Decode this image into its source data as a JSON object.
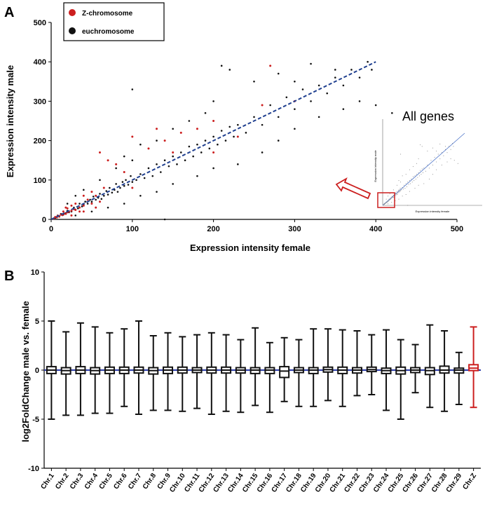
{
  "panels": {
    "a_label": "A",
    "b_label": "B"
  },
  "chart_data": [
    {
      "type": "scatter",
      "xlabel": "Expression intensity female",
      "ylabel": "Expression intensity male",
      "xlim": [
        0,
        500
      ],
      "ylim": [
        0,
        500
      ],
      "xticks": [
        "0",
        "100",
        "200",
        "300",
        "400",
        "500"
      ],
      "yticks": [
        "0",
        "100",
        "200",
        "300",
        "400",
        "500"
      ],
      "legend": [
        {
          "label": "Z-chromosome",
          "color": "#cc1f1f"
        },
        {
          "label": "euchromosome",
          "color": "#111111"
        }
      ],
      "legend_position": "top-left",
      "trendline": {
        "x": [
          0,
          400
        ],
        "y": [
          0,
          400
        ],
        "style": "dashed",
        "color": "#1f3f8f"
      },
      "inset": {
        "title": "All genes",
        "xlabel": "Expression intensity female",
        "ylabel": "Expression intensity male",
        "highlight_color": "#cc1f1f"
      },
      "points_note": "dense cloud along y = x from 0 to ~400, red Z-chromosome points concentrated below 100",
      "points_euchromosome": [
        [
          5,
          4
        ],
        [
          8,
          10
        ],
        [
          10,
          7
        ],
        [
          12,
          14
        ],
        [
          15,
          12
        ],
        [
          18,
          16
        ],
        [
          20,
          22
        ],
        [
          22,
          18
        ],
        [
          25,
          20
        ],
        [
          28,
          30
        ],
        [
          30,
          25
        ],
        [
          33,
          28
        ],
        [
          35,
          40
        ],
        [
          38,
          33
        ],
        [
          40,
          38
        ],
        [
          42,
          45
        ],
        [
          45,
          40
        ],
        [
          48,
          50
        ],
        [
          50,
          45
        ],
        [
          52,
          58
        ],
        [
          55,
          50
        ],
        [
          58,
          55
        ],
        [
          60,
          65
        ],
        [
          62,
          52
        ],
        [
          65,
          60
        ],
        [
          68,
          72
        ],
        [
          70,
          63
        ],
        [
          72,
          80
        ],
        [
          75,
          68
        ],
        [
          78,
          75
        ],
        [
          80,
          90
        ],
        [
          82,
          70
        ],
        [
          85,
          80
        ],
        [
          88,
          95
        ],
        [
          90,
          85
        ],
        [
          92,
          100
        ],
        [
          95,
          88
        ],
        [
          98,
          110
        ],
        [
          100,
          95
        ],
        [
          105,
          100
        ],
        [
          110,
          115
        ],
        [
          115,
          105
        ],
        [
          120,
          130
        ],
        [
          125,
          110
        ],
        [
          130,
          140
        ],
        [
          135,
          120
        ],
        [
          140,
          150
        ],
        [
          145,
          135
        ],
        [
          150,
          160
        ],
        [
          155,
          140
        ],
        [
          160,
          170
        ],
        [
          165,
          150
        ],
        [
          170,
          185
        ],
        [
          175,
          160
        ],
        [
          180,
          190
        ],
        [
          185,
          170
        ],
        [
          190,
          200
        ],
        [
          195,
          180
        ],
        [
          200,
          210
        ],
        [
          205,
          190
        ],
        [
          210,
          225
        ],
        [
          215,
          200
        ],
        [
          220,
          235
        ],
        [
          225,
          210
        ],
        [
          230,
          240
        ],
        [
          240,
          220
        ],
        [
          250,
          260
        ],
        [
          260,
          240
        ],
        [
          270,
          290
        ],
        [
          280,
          260
        ],
        [
          290,
          310
        ],
        [
          300,
          280
        ],
        [
          310,
          330
        ],
        [
          320,
          300
        ],
        [
          330,
          340
        ],
        [
          340,
          320
        ],
        [
          350,
          360
        ],
        [
          360,
          340
        ],
        [
          370,
          380
        ],
        [
          380,
          360
        ],
        [
          390,
          400
        ],
        [
          395,
          380
        ],
        [
          20,
          40
        ],
        [
          30,
          60
        ],
        [
          40,
          75
        ],
        [
          60,
          100
        ],
        [
          80,
          130
        ],
        [
          90,
          160
        ],
        [
          100,
          150
        ],
        [
          110,
          190
        ],
        [
          130,
          200
        ],
        [
          150,
          230
        ],
        [
          170,
          250
        ],
        [
          190,
          270
        ],
        [
          200,
          300
        ],
        [
          210,
          390
        ],
        [
          220,
          380
        ],
        [
          250,
          350
        ],
        [
          280,
          370
        ],
        [
          300,
          350
        ],
        [
          320,
          395
        ],
        [
          350,
          380
        ],
        [
          30,
          10
        ],
        [
          50,
          20
        ],
        [
          70,
          30
        ],
        [
          90,
          40
        ],
        [
          110,
          60
        ],
        [
          130,
          70
        ],
        [
          150,
          90
        ],
        [
          180,
          110
        ],
        [
          200,
          130
        ],
        [
          230,
          140
        ],
        [
          260,
          170
        ],
        [
          280,
          200
        ],
        [
          300,
          230
        ],
        [
          330,
          260
        ],
        [
          360,
          280
        ],
        [
          380,
          300
        ],
        [
          400,
          290
        ],
        [
          420,
          270
        ],
        [
          100,
          330
        ],
        [
          140,
          0
        ]
      ],
      "points_z_chromosome": [
        [
          3,
          2
        ],
        [
          5,
          6
        ],
        [
          7,
          5
        ],
        [
          8,
          9
        ],
        [
          10,
          8
        ],
        [
          12,
          12
        ],
        [
          14,
          11
        ],
        [
          16,
          15
        ],
        [
          18,
          14
        ],
        [
          20,
          18
        ],
        [
          22,
          20
        ],
        [
          25,
          22
        ],
        [
          28,
          26
        ],
        [
          30,
          24
        ],
        [
          15,
          20
        ],
        [
          20,
          28
        ],
        [
          25,
          35
        ],
        [
          30,
          40
        ],
        [
          35,
          30
        ],
        [
          40,
          35
        ],
        [
          45,
          50
        ],
        [
          50,
          40
        ],
        [
          55,
          60
        ],
        [
          60,
          45
        ],
        [
          25,
          10
        ],
        [
          35,
          20
        ],
        [
          18,
          30
        ],
        [
          40,
          60
        ],
        [
          50,
          70
        ],
        [
          65,
          80
        ],
        [
          100,
          210
        ],
        [
          120,
          180
        ],
        [
          130,
          230
        ],
        [
          140,
          200
        ],
        [
          160,
          220
        ],
        [
          180,
          230
        ],
        [
          200,
          250
        ],
        [
          230,
          210
        ],
        [
          260,
          290
        ],
        [
          270,
          390
        ],
        [
          80,
          140
        ],
        [
          60,
          170
        ],
        [
          100,
          80
        ],
        [
          70,
          150
        ],
        [
          90,
          120
        ],
        [
          150,
          170
        ],
        [
          200,
          170
        ],
        [
          300,
          300
        ],
        [
          40,
          20
        ],
        [
          55,
          30
        ]
      ]
    },
    {
      "type": "box",
      "xlabel": "",
      "ylabel": "log2FoldChange male vs. female",
      "ylim": [
        -10,
        10
      ],
      "yticks": [
        "-10",
        "-5",
        "0",
        "5",
        "10"
      ],
      "reference_line": {
        "y": 0,
        "color": "#2a3aa8"
      },
      "categories": [
        "Chr.1",
        "Chr.2",
        "Chr.3",
        "Chr.4",
        "Chr.5",
        "Chr.6",
        "Chr.7",
        "Chr.8",
        "Chr.9",
        "Chr.10",
        "Chr.11",
        "Chr.12",
        "Chr.13",
        "Chr.14",
        "Chr.15",
        "Chr.16",
        "Chr.17",
        "Chr.18",
        "Chr.19",
        "Chr.20",
        "Chr.21",
        "Chr.22",
        "Chr.23",
        "Chr.24",
        "Chr.25",
        "Chr.26",
        "Chr.27",
        "Chr.28",
        "Chr.29",
        "Chr.Z"
      ],
      "boxes": [
        {
          "min": -5.0,
          "q1": -0.35,
          "median": 0,
          "q3": 0.35,
          "max": 5.0
        },
        {
          "min": -4.6,
          "q1": -0.4,
          "median": -0.05,
          "q3": 0.25,
          "max": 3.9
        },
        {
          "min": -4.6,
          "q1": -0.35,
          "median": 0,
          "q3": 0.35,
          "max": 4.8
        },
        {
          "min": -4.4,
          "q1": -0.4,
          "median": -0.05,
          "q3": 0.25,
          "max": 4.4
        },
        {
          "min": -4.4,
          "q1": -0.35,
          "median": 0,
          "q3": 0.3,
          "max": 3.8
        },
        {
          "min": -3.7,
          "q1": -0.35,
          "median": 0,
          "q3": 0.3,
          "max": 4.2
        },
        {
          "min": -4.5,
          "q1": -0.3,
          "median": 0,
          "q3": 0.3,
          "max": 5.0
        },
        {
          "min": -4.1,
          "q1": -0.4,
          "median": -0.05,
          "q3": 0.25,
          "max": 3.5
        },
        {
          "min": -4.1,
          "q1": -0.35,
          "median": 0,
          "q3": 0.3,
          "max": 3.8
        },
        {
          "min": -4.2,
          "q1": -0.3,
          "median": 0,
          "q3": 0.3,
          "max": 3.4
        },
        {
          "min": -3.9,
          "q1": -0.25,
          "median": 0,
          "q3": 0.25,
          "max": 3.6
        },
        {
          "min": -4.5,
          "q1": -0.3,
          "median": 0,
          "q3": 0.3,
          "max": 3.8
        },
        {
          "min": -4.2,
          "q1": -0.3,
          "median": 0,
          "q3": 0.3,
          "max": 3.6
        },
        {
          "min": -4.3,
          "q1": -0.3,
          "median": 0,
          "q3": 0.25,
          "max": 3.1
        },
        {
          "min": -3.6,
          "q1": -0.35,
          "median": 0,
          "q3": 0.25,
          "max": 4.3
        },
        {
          "min": -4.3,
          "q1": -0.35,
          "median": 0,
          "q3": 0.25,
          "max": 2.8
        },
        {
          "min": -3.2,
          "q1": -0.75,
          "median": -0.1,
          "q3": 0.35,
          "max": 3.3
        },
        {
          "min": -3.7,
          "q1": -0.25,
          "median": 0,
          "q3": 0.25,
          "max": 3.1
        },
        {
          "min": -3.7,
          "q1": -0.35,
          "median": 0,
          "q3": 0.25,
          "max": 4.2
        },
        {
          "min": -3.1,
          "q1": -0.2,
          "median": 0.05,
          "q3": 0.3,
          "max": 4.2
        },
        {
          "min": -3.7,
          "q1": -0.35,
          "median": 0,
          "q3": 0.3,
          "max": 4.1
        },
        {
          "min": -2.6,
          "q1": -0.3,
          "median": 0,
          "q3": 0.25,
          "max": 4.0
        },
        {
          "min": -2.5,
          "q1": -0.15,
          "median": 0.05,
          "q3": 0.3,
          "max": 3.6
        },
        {
          "min": -4.1,
          "q1": -0.35,
          "median": -0.05,
          "q3": 0.2,
          "max": 4.1
        },
        {
          "min": -5.0,
          "q1": -0.4,
          "median": -0.05,
          "q3": 0.3,
          "max": 3.1
        },
        {
          "min": -2.3,
          "q1": -0.25,
          "median": 0,
          "q3": 0.25,
          "max": 2.6
        },
        {
          "min": -3.8,
          "q1": -0.45,
          "median": -0.05,
          "q3": 0.25,
          "max": 4.6
        },
        {
          "min": -4.2,
          "q1": -0.3,
          "median": 0,
          "q3": 0.4,
          "max": 4.0
        },
        {
          "min": -3.5,
          "q1": -0.3,
          "median": 0,
          "q3": 0.2,
          "max": 1.8
        },
        {
          "min": -3.8,
          "q1": -0.05,
          "median": 0.2,
          "q3": 0.55,
          "max": 4.4
        }
      ],
      "colors": {
        "default": "#111111",
        "highlight": "#cc1f1f"
      },
      "highlight_category": "Chr.Z"
    }
  ]
}
